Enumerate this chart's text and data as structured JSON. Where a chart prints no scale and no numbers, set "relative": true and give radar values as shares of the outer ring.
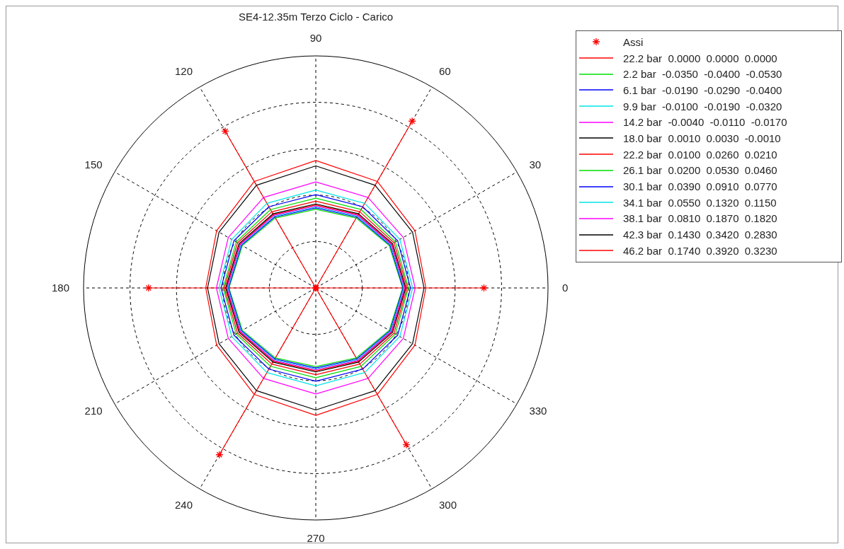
{
  "chart_data": {
    "type": "radar",
    "title": "SE4-12.35m Terzo Ciclo - Carico",
    "relative": true,
    "grid": true,
    "legend": "top right",
    "line_style": "solid",
    "categories": [
      "90",
      "60",
      "30",
      "0",
      "330",
      "300",
      "270",
      "240",
      "210",
      "180",
      "150",
      "120"
    ],
    "series": [
      {
        "name": "Assi",
        "marker": "star",
        "color": "#ff0000",
        "values": [
          0,
          0.83,
          0,
          0.724,
          0,
          0.78,
          0,
          0.83,
          0,
          0.72,
          0,
          0.78
        ]
      },
      {
        "name": "22.2 bar  0.0000  0.0000  0.0000",
        "color": "#ff0000",
        "values": [
          0.358,
          0.365,
          0.378,
          0.385,
          0.378,
          0.365,
          0.358,
          0.365,
          0.378,
          0.385,
          0.378,
          0.365
        ]
      },
      {
        "name": "2.2 bar  -0.0350  -0.0400  -0.0530",
        "color": "#00dd00",
        "values": [
          0.339,
          0.348,
          0.365,
          0.374,
          0.365,
          0.348,
          0.339,
          0.348,
          0.365,
          0.374,
          0.365,
          0.348
        ]
      },
      {
        "name": "6.1 bar  -0.0190  -0.0290  -0.0400",
        "color": "#0000ff",
        "values": [
          0.345,
          0.353,
          0.369,
          0.376,
          0.369,
          0.353,
          0.345,
          0.353,
          0.369,
          0.376,
          0.369,
          0.353
        ]
      },
      {
        "name": "9.9 bar  -0.0100  -0.0190  -0.0320",
        "color": "#00e5e5",
        "values": [
          0.349,
          0.357,
          0.372,
          0.379,
          0.372,
          0.357,
          0.349,
          0.357,
          0.372,
          0.379,
          0.372,
          0.357
        ]
      },
      {
        "name": "14.2 bar  -0.0040  -0.0110  -0.0170",
        "color": "#ff00ff",
        "values": [
          0.353,
          0.361,
          0.375,
          0.382,
          0.375,
          0.361,
          0.353,
          0.361,
          0.375,
          0.382,
          0.375,
          0.361
        ]
      },
      {
        "name": "18.0 bar  0.0010  0.0030  -0.0010",
        "color": "#000000",
        "values": [
          0.362,
          0.369,
          0.382,
          0.388,
          0.382,
          0.369,
          0.362,
          0.369,
          0.382,
          0.388,
          0.382,
          0.369
        ]
      },
      {
        "name": "22.2 bar  0.0100  0.0260  0.0210",
        "color": "#ff0000",
        "values": [
          0.374,
          0.379,
          0.389,
          0.394,
          0.389,
          0.379,
          0.374,
          0.379,
          0.389,
          0.394,
          0.389,
          0.379
        ]
      },
      {
        "name": "26.1 bar  0.0200  0.0530  0.0460",
        "color": "#00dd00",
        "values": [
          0.387,
          0.39,
          0.396,
          0.399,
          0.396,
          0.39,
          0.387,
          0.39,
          0.396,
          0.399,
          0.396,
          0.39
        ]
      },
      {
        "name": "30.1 bar  0.0390  0.0910  0.0770",
        "color": "#0000ff",
        "values": [
          0.402,
          0.404,
          0.407,
          0.408,
          0.407,
          0.404,
          0.402,
          0.404,
          0.407,
          0.408,
          0.407,
          0.404
        ]
      },
      {
        "name": "34.1 bar  0.0550  0.1320  0.1150",
        "color": "#00e5e5",
        "values": [
          0.422,
          0.421,
          0.418,
          0.417,
          0.418,
          0.421,
          0.422,
          0.421,
          0.418,
          0.417,
          0.418,
          0.421
        ]
      },
      {
        "name": "38.1 bar  0.0810  0.1870  0.1820",
        "color": "#ff00ff",
        "values": [
          0.457,
          0.45,
          0.435,
          0.428,
          0.435,
          0.45,
          0.457,
          0.45,
          0.435,
          0.428,
          0.435,
          0.45
        ]
      },
      {
        "name": "42.3 bar  0.1430  0.3420  0.2830",
        "color": "#000000",
        "values": [
          0.526,
          0.511,
          0.481,
          0.466,
          0.481,
          0.511,
          0.526,
          0.511,
          0.481,
          0.466,
          0.481,
          0.511
        ]
      },
      {
        "name": "46.2 bar  0.1740  0.3920  0.3230",
        "color": "#ff0000",
        "values": [
          0.549,
          0.53,
          0.493,
          0.474,
          0.493,
          0.53,
          0.549,
          0.53,
          0.493,
          0.474,
          0.493,
          0.53
        ]
      }
    ]
  }
}
